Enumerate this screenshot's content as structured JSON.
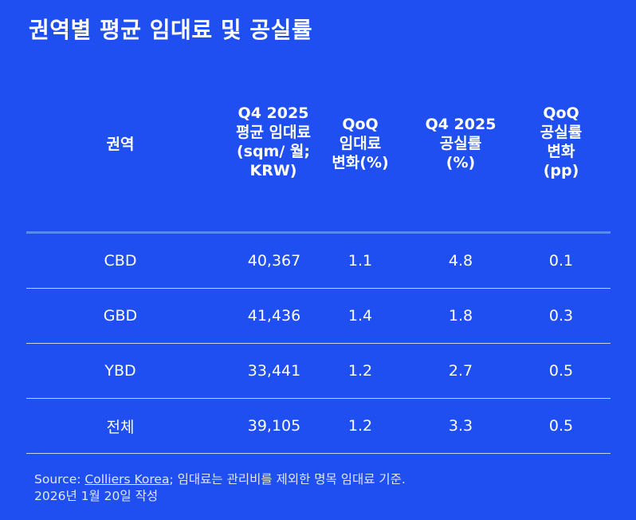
{
  "title": "권역별 평균 임대료 및 공실률",
  "headers": [
    "권역",
    "Q4 2025\n평균 임대료\n(sqm/ 월;\nKRW)",
    "QoQ\n임대료\n변화(%)",
    "Q4 2025\n공실률\n(%)",
    "QoQ\n공실률\n변화\n(pp)"
  ],
  "rows": [
    [
      "CBD",
      "40,367",
      "1.1",
      "4.8",
      "0.1"
    ],
    [
      "GBD",
      "41,436",
      "1.4",
      "1.8",
      "0.3"
    ],
    [
      "YBD",
      "33,441",
      "1.2",
      "2.7",
      "0.5"
    ],
    [
      "전체",
      "39,105",
      "1.2",
      "3.3",
      "0.5"
    ]
  ],
  "footer": {
    "source_prefix": "Source: ",
    "source_link": "Colliers Korea",
    "source_suffix": "; 임대료는 관리비를 제외한 명목 임대료 기준.",
    "date_line": "2026년 1월 20일 작성"
  }
}
